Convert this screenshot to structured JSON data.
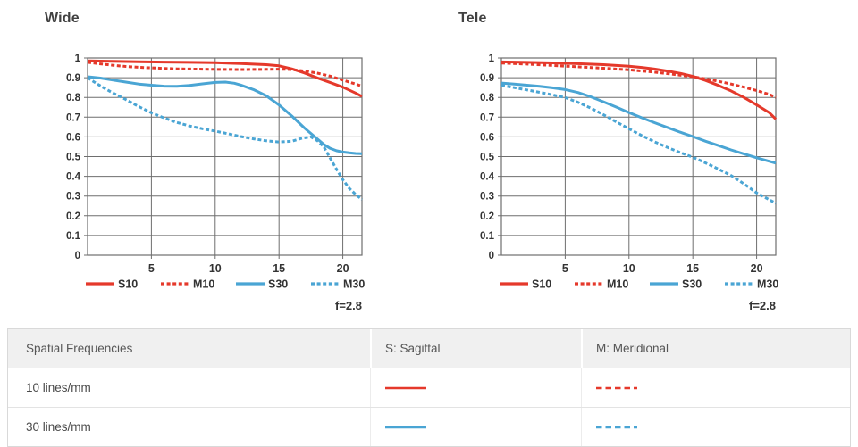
{
  "colors": {
    "red": "#e5392b",
    "blue": "#4aa5d4",
    "grid": "#6e6e6e",
    "axis_text": "#333333"
  },
  "chart_data": [
    {
      "type": "line",
      "title": "Wide",
      "f_label": "f=2.8",
      "xlabel": "",
      "ylabel": "",
      "x_max": 21.5,
      "ylim": [
        0,
        1
      ],
      "x_ticks": [
        "5",
        "10",
        "15",
        "20"
      ],
      "y_ticks": [
        "1",
        "0.9",
        "0.8",
        "0.7",
        "0.6",
        "0.5",
        "0.4",
        "0.3",
        "0.2",
        "0.1",
        "0"
      ],
      "legend_position": "bottom",
      "grid": true,
      "series": [
        {
          "name": "S10",
          "color": "red",
          "style": "solid",
          "points": [
            [
              0,
              0.985
            ],
            [
              2,
              0.983
            ],
            [
              4,
              0.981
            ],
            [
              6,
              0.979
            ],
            [
              8,
              0.978
            ],
            [
              10,
              0.976
            ],
            [
              12,
              0.972
            ],
            [
              13,
              0.969
            ],
            [
              14,
              0.966
            ],
            [
              15,
              0.96
            ],
            [
              16,
              0.945
            ],
            [
              17,
              0.924
            ],
            [
              18,
              0.899
            ],
            [
              19,
              0.876
            ],
            [
              20,
              0.852
            ],
            [
              21,
              0.822
            ],
            [
              21.5,
              0.805
            ]
          ]
        },
        {
          "name": "M10",
          "color": "red",
          "style": "dashed",
          "points": [
            [
              0,
              0.978
            ],
            [
              1,
              0.97
            ],
            [
              2,
              0.963
            ],
            [
              3,
              0.957
            ],
            [
              4,
              0.953
            ],
            [
              5,
              0.95
            ],
            [
              6,
              0.947
            ],
            [
              7,
              0.945
            ],
            [
              8,
              0.944
            ],
            [
              9,
              0.943
            ],
            [
              10,
              0.942
            ],
            [
              12,
              0.941
            ],
            [
              14,
              0.942
            ],
            [
              15,
              0.943
            ],
            [
              16,
              0.941
            ],
            [
              17,
              0.934
            ],
            [
              18,
              0.923
            ],
            [
              19,
              0.908
            ],
            [
              20,
              0.888
            ],
            [
              21,
              0.868
            ],
            [
              21.5,
              0.857
            ]
          ]
        },
        {
          "name": "S30",
          "color": "blue",
          "style": "solid",
          "points": [
            [
              0,
              0.905
            ],
            [
              1,
              0.898
            ],
            [
              2,
              0.888
            ],
            [
              3,
              0.878
            ],
            [
              4,
              0.868
            ],
            [
              5,
              0.862
            ],
            [
              6,
              0.857
            ],
            [
              7,
              0.856
            ],
            [
              8,
              0.861
            ],
            [
              9,
              0.869
            ],
            [
              10,
              0.876
            ],
            [
              10.8,
              0.878
            ],
            [
              11.5,
              0.872
            ],
            [
              12,
              0.863
            ],
            [
              13,
              0.84
            ],
            [
              14,
              0.808
            ],
            [
              15,
              0.762
            ],
            [
              16,
              0.706
            ],
            [
              17,
              0.645
            ],
            [
              17.5,
              0.617
            ],
            [
              18,
              0.59
            ],
            [
              18.5,
              0.562
            ],
            [
              19,
              0.542
            ],
            [
              19.5,
              0.53
            ],
            [
              20,
              0.523
            ],
            [
              20.5,
              0.519
            ],
            [
              21,
              0.516
            ],
            [
              21.5,
              0.515
            ]
          ]
        },
        {
          "name": "M30",
          "color": "blue",
          "style": "dashed",
          "points": [
            [
              0,
              0.9
            ],
            [
              0.5,
              0.879
            ],
            [
              1,
              0.859
            ],
            [
              1.5,
              0.84
            ],
            [
              2,
              0.822
            ],
            [
              3,
              0.789
            ],
            [
              4,
              0.754
            ],
            [
              5,
              0.722
            ],
            [
              6,
              0.696
            ],
            [
              7,
              0.673
            ],
            [
              8,
              0.655
            ],
            [
              9,
              0.641
            ],
            [
              10,
              0.629
            ],
            [
              11,
              0.616
            ],
            [
              12,
              0.602
            ],
            [
              13,
              0.59
            ],
            [
              14,
              0.58
            ],
            [
              15,
              0.574
            ],
            [
              16,
              0.578
            ],
            [
              16.8,
              0.593
            ],
            [
              17.5,
              0.6
            ],
            [
              18,
              0.581
            ],
            [
              18.5,
              0.55
            ],
            [
              19,
              0.493
            ],
            [
              19.5,
              0.437
            ],
            [
              20,
              0.383
            ],
            [
              20.5,
              0.34
            ],
            [
              21,
              0.308
            ],
            [
              21.5,
              0.283
            ]
          ]
        }
      ]
    },
    {
      "type": "line",
      "title": "Tele",
      "f_label": "f=2.8",
      "xlabel": "",
      "ylabel": "",
      "x_max": 21.5,
      "ylim": [
        0,
        1
      ],
      "x_ticks": [
        "5",
        "10",
        "15",
        "20"
      ],
      "y_ticks": [
        "1",
        "0.9",
        "0.8",
        "0.7",
        "0.6",
        "0.5",
        "0.4",
        "0.3",
        "0.2",
        "0.1",
        "0"
      ],
      "legend_position": "bottom",
      "grid": true,
      "series": [
        {
          "name": "S10",
          "color": "red",
          "style": "solid",
          "points": [
            [
              0,
              0.98
            ],
            [
              2,
              0.978
            ],
            [
              4,
              0.975
            ],
            [
              6,
              0.971
            ],
            [
              8,
              0.966
            ],
            [
              10,
              0.958
            ],
            [
              11,
              0.952
            ],
            [
              12,
              0.944
            ],
            [
              13,
              0.934
            ],
            [
              14,
              0.922
            ],
            [
              15,
              0.907
            ],
            [
              16,
              0.886
            ],
            [
              17,
              0.861
            ],
            [
              18,
              0.833
            ],
            [
              19,
              0.8
            ],
            [
              20,
              0.762
            ],
            [
              21,
              0.722
            ],
            [
              21.5,
              0.69
            ]
          ]
        },
        {
          "name": "M10",
          "color": "red",
          "style": "dashed",
          "points": [
            [
              0,
              0.974
            ],
            [
              2,
              0.969
            ],
            [
              4,
              0.962
            ],
            [
              6,
              0.955
            ],
            [
              8,
              0.948
            ],
            [
              10,
              0.94
            ],
            [
              12,
              0.928
            ],
            [
              14,
              0.913
            ],
            [
              15,
              0.905
            ],
            [
              16,
              0.894
            ],
            [
              17,
              0.882
            ],
            [
              18,
              0.868
            ],
            [
              19,
              0.852
            ],
            [
              20,
              0.835
            ],
            [
              21,
              0.815
            ],
            [
              21.5,
              0.8
            ]
          ]
        },
        {
          "name": "S30",
          "color": "blue",
          "style": "solid",
          "points": [
            [
              0,
              0.873
            ],
            [
              1,
              0.868
            ],
            [
              2,
              0.862
            ],
            [
              3,
              0.856
            ],
            [
              4,
              0.849
            ],
            [
              5,
              0.84
            ],
            [
              6,
              0.825
            ],
            [
              7,
              0.803
            ],
            [
              8,
              0.778
            ],
            [
              9,
              0.751
            ],
            [
              10,
              0.723
            ],
            [
              11,
              0.697
            ],
            [
              12,
              0.672
            ],
            [
              13,
              0.648
            ],
            [
              14,
              0.624
            ],
            [
              15,
              0.602
            ],
            [
              16,
              0.578
            ],
            [
              17,
              0.556
            ],
            [
              18,
              0.534
            ],
            [
              19,
              0.514
            ],
            [
              20,
              0.494
            ],
            [
              21,
              0.476
            ],
            [
              21.5,
              0.467
            ]
          ]
        },
        {
          "name": "M30",
          "color": "blue",
          "style": "dashed",
          "points": [
            [
              0,
              0.862
            ],
            [
              1,
              0.85
            ],
            [
              2,
              0.838
            ],
            [
              3,
              0.826
            ],
            [
              4,
              0.813
            ],
            [
              5,
              0.799
            ],
            [
              6,
              0.775
            ],
            [
              7,
              0.746
            ],
            [
              8,
              0.712
            ],
            [
              9,
              0.676
            ],
            [
              10,
              0.641
            ],
            [
              11,
              0.607
            ],
            [
              12,
              0.575
            ],
            [
              13,
              0.547
            ],
            [
              14,
              0.521
            ],
            [
              15,
              0.497
            ],
            [
              16,
              0.468
            ],
            [
              17,
              0.437
            ],
            [
              18,
              0.404
            ],
            [
              19,
              0.362
            ],
            [
              20,
              0.316
            ],
            [
              21,
              0.281
            ],
            [
              21.5,
              0.263
            ]
          ]
        }
      ]
    }
  ],
  "table": {
    "headers": [
      "Spatial Frequencies",
      "S: Sagittal",
      "M: Meridional"
    ],
    "rows": [
      {
        "label": "10 lines/mm",
        "s": {
          "color": "red",
          "style": "solid"
        },
        "m": {
          "color": "red",
          "style": "dashed"
        }
      },
      {
        "label": "30 lines/mm",
        "s": {
          "color": "blue",
          "style": "solid"
        },
        "m": {
          "color": "blue",
          "style": "dashed"
        }
      }
    ]
  }
}
